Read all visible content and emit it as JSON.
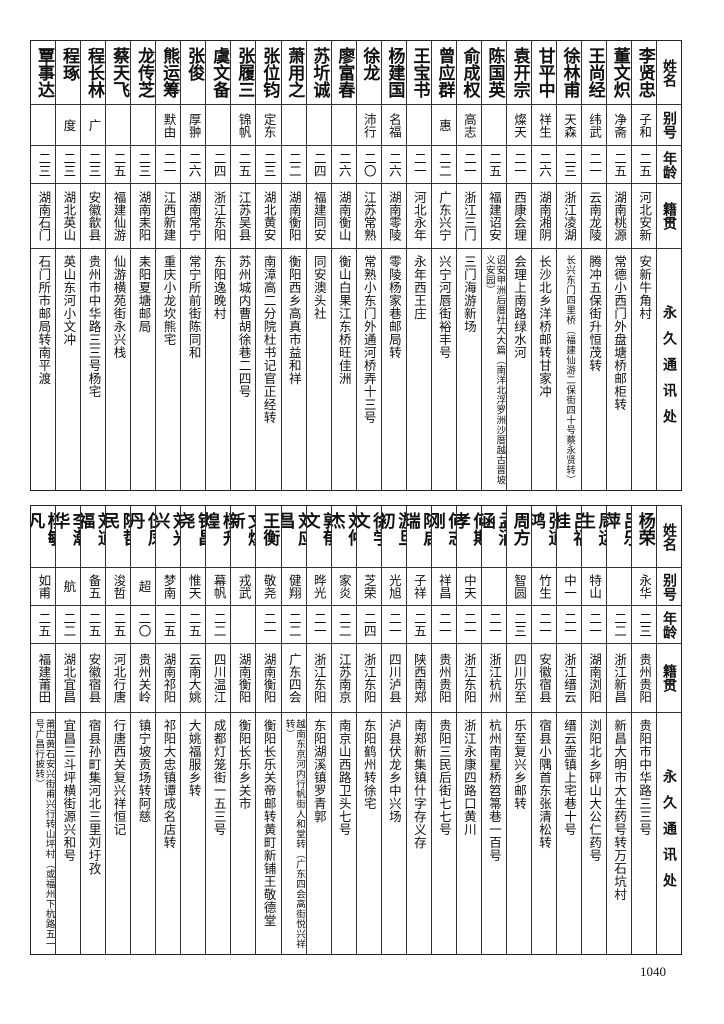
{
  "headers": {
    "name": "姓名",
    "alias": "别号",
    "age": "年龄",
    "origin": "籍贯",
    "address": "永久通讯处"
  },
  "top_rows": [
    {
      "name": "李贤忠",
      "alias": "子和",
      "age": "二五",
      "origin": "河北安新",
      "address": "安新牛角村"
    },
    {
      "name": "董文炽",
      "alias": "净斋",
      "age": "二五",
      "origin": "湖南桃源",
      "address": "常德小西门外盘塘桥邮柜转"
    },
    {
      "name": "王尚经",
      "alias": "纬武",
      "age": "二一",
      "origin": "云南龙陵",
      "address": "腾冲五保街升恒茂转"
    },
    {
      "name": "徐林甫",
      "alias": "天森",
      "age": "二三",
      "origin": "浙江凌湖",
      "address": "长兴东门四里桥（福建仙游二保街四十号蔡永贤转）"
    },
    {
      "name": "甘平中",
      "alias": "祥生",
      "age": "二六",
      "origin": "湖南湘阴",
      "address": "长沙北乡洋桥邮转甘家冲"
    },
    {
      "name": "袁开宗",
      "alias": "燦天",
      "age": "二一",
      "origin": "西康会理",
      "address": "会理上南路绿水河"
    },
    {
      "name": "陈国英",
      "alias": "",
      "age": "二五",
      "origin": "福建诏安",
      "address": "诏安甲洲后厝社大大篇（南洋北浮罗洲沙厝越古晋坡义安园）"
    },
    {
      "name": "俞成权",
      "alias": "高志",
      "age": "二一",
      "origin": "浙江三门",
      "address": "三门海游新场"
    },
    {
      "name": "曾应群",
      "alias": "惠",
      "age": "二二",
      "origin": "广东兴宁",
      "address": "兴宁河唇街裕丰号"
    },
    {
      "name": "王宝书",
      "alias": "",
      "age": "二一",
      "origin": "河北永年",
      "address": "永年西王庄"
    },
    {
      "name": "杨建国",
      "alias": "名福",
      "age": "二六",
      "origin": "湖南零陵",
      "address": "零陵杨家巷邮局转"
    },
    {
      "name": "徐龙",
      "alias": "沛行",
      "age": "二〇",
      "origin": "江苏常熟",
      "address": "常熟小东门外通河桥弄十三号"
    },
    {
      "name": "廖富春",
      "alias": "",
      "age": "二六",
      "origin": "湖南衡山",
      "address": "衡山白果江东桥旺佳洲"
    },
    {
      "name": "苏圻诚",
      "alias": "",
      "age": "二四",
      "origin": "福建同安",
      "address": "同安澳头社"
    },
    {
      "name": "萧用之",
      "alias": "",
      "age": "二二",
      "origin": "湖南衡阳",
      "address": "衡阳西乡高真市益和祥"
    },
    {
      "name": "张位钧",
      "alias": "定东",
      "age": "二三",
      "origin": "湖北黄安",
      "address": "南漳高二分院杜书记官正经转"
    },
    {
      "name": "张履三",
      "alias": "锦帆",
      "age": "二五",
      "origin": "江苏吴县",
      "address": "苏州城内曹胡徐巷二四号"
    },
    {
      "name": "虞文备",
      "alias": "",
      "age": "二四",
      "origin": "浙江东阳",
      "address": "东阳逸晚村"
    },
    {
      "name": "张俊",
      "alias": "厚翀",
      "age": "二六",
      "origin": "湖南常宁",
      "address": "常宁所前街陈同和"
    },
    {
      "name": "熊运筹",
      "alias": "默由",
      "age": "二一",
      "origin": "江西新建",
      "address": "重庆小龙坎熊宅"
    },
    {
      "name": "龙传芝",
      "alias": "",
      "age": "二三",
      "origin": "湖南耒阳",
      "address": "耒阳夏塘邮局"
    },
    {
      "name": "蔡天飞",
      "alias": "",
      "age": "二五",
      "origin": "福建仙游",
      "address": "仙游横苑街永兴栈"
    },
    {
      "name": "程长林",
      "alias": "广",
      "age": "二三",
      "origin": "安徽歙县",
      "address": "贵州市中华路三三号杨宅"
    },
    {
      "name": "程琢",
      "alias": "度",
      "age": "二三",
      "origin": "湖北英山",
      "address": "英山东河小文冲"
    },
    {
      "name": "覃事达",
      "alias": "",
      "age": "二三",
      "origin": "湖南石门",
      "address": "石门所市邮局转南平渡"
    }
  ],
  "bottom_rows": [
    {
      "name": "杨荣",
      "alias": "永华",
      "age": "二三",
      "origin": "贵州贵阳",
      "address": "贵阳市中华路三三号"
    },
    {
      "name": "吕乐萍",
      "alias": "",
      "age": "二二",
      "origin": "浙江新昌",
      "address": "新昌大明市大生药号转万石坑村"
    },
    {
      "name": "周运生",
      "alias": "特山",
      "age": "二一",
      "origin": "湖南浏阳",
      "address": "浏阳北乡砰山大公仁药号"
    },
    {
      "name": "吕福桂",
      "alias": "中一",
      "age": "二一",
      "origin": "浙江缙云",
      "address": "缙云壶镇上宅巷十号"
    },
    {
      "name": "张道鸿",
      "alias": "竹生",
      "age": "二一",
      "origin": "安徽宿县",
      "address": "宿县小隅首东张清松转"
    },
    {
      "name": "周方",
      "alias": "智圆",
      "age": "二三",
      "origin": "四川乐至",
      "address": "乐至复兴乡邮转"
    },
    {
      "name": "孟涌涵",
      "alias": "",
      "age": "二一",
      "origin": "浙江杭州",
      "address": "杭州南星桥笤箒巷一百号"
    },
    {
      "name": "何期孝",
      "alias": "中天",
      "age": "二一",
      "origin": "浙江东阳",
      "address": "浙江永康四路口黄川"
    },
    {
      "name": "何志刚",
      "alias": "祥昌",
      "age": "二一",
      "origin": "贵州贵阳",
      "address": "贵阳三民后街七七号"
    },
    {
      "name": "陈启瑞",
      "alias": "子祥",
      "age": "二五",
      "origin": "陕西南郑",
      "address": "南郑新集镇什字存义存"
    },
    {
      "name": "游旦初",
      "alias": "光旭",
      "age": "二一",
      "origin": "四川泸县",
      "address": "泸县伏龙乡中兴场"
    },
    {
      "name": "徐学文",
      "alias": "芝荣",
      "age": "二四",
      "origin": "浙江东阳",
      "address": "东阳鹤州转徐宅"
    },
    {
      "name": "刘仲杰",
      "alias": "家炎",
      "age": "二二",
      "origin": "江苏南京",
      "address": "南京山西路卫头七号"
    },
    {
      "name": "郭郁文",
      "alias": "晔光",
      "age": "二一",
      "origin": "浙江东阳",
      "address": "东阳湖溪镇罗青郭"
    },
    {
      "name": "刘应昌",
      "alias": "健翔",
      "age": "二二",
      "origin": "广东四会",
      "address": "越南东京河内行帆街人和堂转（广东四会高街悦兴祥转）"
    },
    {
      "name": "王衡",
      "alias": "敬尧",
      "age": "二一",
      "origin": "湖南衡阳",
      "address": "衡阳长乐关帝邮转黄町新铺王敬德堂"
    },
    {
      "name": "文焕新",
      "alias": "戎武",
      "age": "",
      "origin": "湖南衡阳",
      "address": "衡阳长乐乡关市"
    },
    {
      "name": "杨升煌",
      "alias": "幕帆",
      "age": "二二",
      "origin": "四川温江",
      "address": "成都灯笼街一五三号"
    },
    {
      "name": "钟昌尧",
      "alias": "惟天",
      "age": "二五",
      "origin": "云南大姚",
      "address": "大姚福服乡转"
    },
    {
      "name": "刘光兴",
      "alias": "梦南",
      "age": "二五",
      "origin": "湖南祁阳",
      "address": "祁阳大忠镇谭成名店转"
    },
    {
      "name": "伍凤丹",
      "alias": "超",
      "age": "二〇",
      "origin": "贵州关岭",
      "address": "镇宁坡贡场转阿慈"
    },
    {
      "name": "陈哲民",
      "alias": "浚哲",
      "age": "二五",
      "origin": "河北行唐",
      "address": "行唐西关复兴祥恒记"
    },
    {
      "name": "刘道福",
      "alias": "备五",
      "age": "二五",
      "origin": "安徽宿县",
      "address": "宿县孙町集河北三里刘圩孜"
    },
    {
      "name": "李瀚华",
      "alias": "航",
      "age": "二二",
      "origin": "湖北宜昌",
      "address": "宜昌三斗坪横街源兴和号"
    },
    {
      "name": "杨敏凡",
      "alias": "如甫",
      "age": "二五",
      "origin": "福建莆田",
      "address": "莆田黄石安兴街甫兴行转山坪村（或福州下杭路五一号广昌行披转）"
    }
  ],
  "page_number": "1040"
}
